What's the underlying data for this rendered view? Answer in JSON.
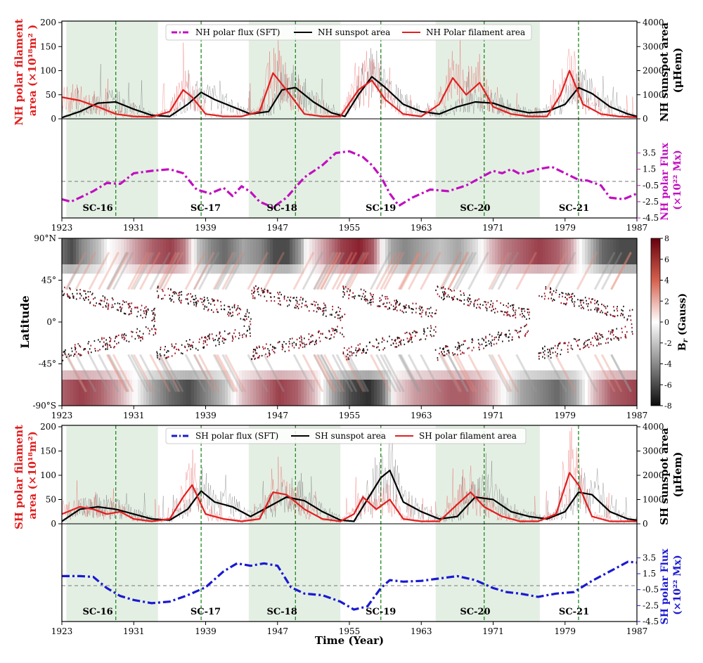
{
  "chart_data": [
    {
      "id": "nh_area",
      "type": "line",
      "title": "",
      "xlabel": "",
      "ylabel_left": "NH polar filament area (×10¹⁸m²)",
      "ylabel_left_lines": [
        "NH polar filament",
        "area (×10¹⁸m² )"
      ],
      "ylabel_right": "NH sunspot area (μHem)",
      "ylabel_right_lines": [
        "NH sunspot area",
        "(μHem)"
      ],
      "xlim": [
        1923,
        1987
      ],
      "ylim_left": [
        0,
        200
      ],
      "ylim_right": [
        0,
        4000
      ],
      "yticks_left": [
        "0",
        "50",
        "100",
        "150",
        "200"
      ],
      "yticks_right": [
        "0",
        "1000",
        "2000",
        "3000",
        "4000"
      ],
      "legend": [
        "NH polar flux (SFT)",
        "NH sunspot area",
        "NH Polar filament area"
      ],
      "series": [
        {
          "name": "NH Polar filament area",
          "axis": "left",
          "x": [
            1923,
            1925,
            1927,
            1929,
            1931,
            1933,
            1935,
            1936.5,
            1937.5,
            1939,
            1941,
            1943,
            1945,
            1946.5,
            1948,
            1950,
            1952,
            1954,
            1956,
            1957.5,
            1959,
            1961,
            1963,
            1965,
            1966.5,
            1968,
            1969.5,
            1971,
            1973,
            1975,
            1977,
            1978.5,
            1979.5,
            1981,
            1983,
            1985,
            1987
          ],
          "values": [
            45,
            38,
            25,
            10,
            5,
            4,
            15,
            60,
            45,
            10,
            5,
            5,
            15,
            95,
            60,
            10,
            5,
            5,
            60,
            80,
            40,
            10,
            5,
            30,
            85,
            50,
            75,
            25,
            10,
            5,
            5,
            50,
            100,
            30,
            10,
            5,
            3
          ]
        },
        {
          "name": "NH sunspot area",
          "axis": "right",
          "x": [
            1923,
            1925,
            1927,
            1929,
            1931,
            1933,
            1935,
            1937,
            1938.5,
            1940,
            1942,
            1944,
            1946,
            1947.5,
            1949,
            1951,
            1953,
            1954.5,
            1956,
            1957.5,
            1959,
            1961,
            1963,
            1965,
            1967,
            1969,
            1971,
            1973,
            1975,
            1977,
            1979,
            1980.5,
            1982,
            1984,
            1986,
            1987
          ],
          "values": [
            50,
            300,
            650,
            700,
            400,
            150,
            100,
            600,
            1100,
            800,
            500,
            200,
            300,
            1200,
            1300,
            700,
            250,
            100,
            1000,
            1750,
            1300,
            600,
            300,
            200,
            500,
            700,
            650,
            400,
            250,
            300,
            600,
            1300,
            1050,
            500,
            200,
            100
          ]
        }
      ]
    },
    {
      "id": "nh_flux",
      "type": "line",
      "ylabel_right": "NH polar Flux (×10²² Mx)",
      "ylabel_right_lines": [
        "NH polar Flux",
        "(×10²² Mx)"
      ],
      "xlim": [
        1923,
        1987
      ],
      "ylim": [
        -4.5,
        4.5
      ],
      "yticks": [
        "3.5",
        "1.5",
        "-0.5",
        "-2.5",
        "-4.5"
      ],
      "xticks": [
        "1923",
        "1931",
        "1939",
        "1947",
        "1955",
        "1963",
        "1971",
        "1979",
        "1987"
      ],
      "series": [
        {
          "name": "NH polar flux (SFT)",
          "x": [
            1923,
            1924,
            1925,
            1926.5,
            1928,
            1929.5,
            1931,
            1933,
            1935,
            1936.5,
            1938,
            1939.5,
            1941,
            1942,
            1943,
            1944,
            1945,
            1946.5,
            1948,
            1950,
            1952,
            1953.5,
            1955,
            1956.5,
            1957.5,
            1958.5,
            1959.5,
            1960.5,
            1962,
            1964,
            1966,
            1968,
            1970,
            1971,
            1972,
            1973,
            1974,
            1976,
            1977.5,
            1979,
            1980.5,
            1981.5,
            1983,
            1984,
            1985.5,
            1987
          ],
          "values": [
            -2.2,
            -2.5,
            -2.0,
            -1.2,
            -0.2,
            -0.3,
            1.0,
            1.3,
            1.5,
            1.0,
            -1.0,
            -1.5,
            -0.8,
            -1.8,
            -0.6,
            -1.3,
            -2.5,
            -3.2,
            -2.0,
            0.5,
            2.0,
            3.5,
            3.7,
            3.0,
            2.0,
            0.6,
            -1.5,
            -3.0,
            -2.0,
            -1.0,
            -1.2,
            -0.5,
            0.7,
            1.3,
            1.0,
            1.5,
            0.9,
            1.5,
            1.8,
            1.0,
            0.2,
            0.1,
            -0.5,
            -2.0,
            -2.2,
            -1.5
          ]
        }
      ],
      "cycle_labels": [
        "SC-16",
        "SC-17",
        "SC-18",
        "SC-19",
        "SC-20",
        "SC-21"
      ]
    },
    {
      "id": "butterfly",
      "type": "heatmap",
      "ylabel": "Latitude",
      "colorbar_label": "B_r (Gauss)",
      "yticks": [
        "90°N",
        "45°",
        "0°",
        "-45°",
        "-90°S"
      ],
      "xticks": [
        "1923",
        "1931",
        "1939",
        "1947",
        "1955",
        "1963",
        "1971",
        "1979",
        "1987"
      ],
      "colorbar_range": [
        -8,
        8
      ],
      "colorbar_ticks": [
        "8",
        "6",
        "4",
        "2",
        "0",
        "-2",
        "-4",
        "-6",
        "-8"
      ],
      "north_polar_field": {
        "x": [
          1923,
          1924,
          1925,
          1927,
          1928,
          1929.5,
          1931,
          1933,
          1935,
          1936.5,
          1937.5,
          1938,
          1939.5,
          1941,
          1943,
          1945,
          1946.5,
          1948,
          1949.5,
          1950,
          1952,
          1954,
          1956,
          1957.5,
          1958.5,
          1959.5,
          1961,
          1963,
          1965,
          1967,
          1969,
          1970.5,
          1972,
          1974,
          1976,
          1978,
          1979.5,
          1980.5,
          1981.5,
          1983,
          1985,
          1987
        ],
        "values": [
          -5,
          -6,
          -4,
          -2,
          0,
          1,
          3,
          5,
          6,
          4,
          0,
          -2,
          -4,
          -5,
          -3,
          -4,
          -6,
          -6,
          -3,
          0,
          3,
          6,
          7,
          5,
          0,
          -3,
          -4,
          -3,
          -2,
          -3,
          -1,
          2,
          4,
          5,
          6,
          5,
          3,
          0,
          -2,
          -5,
          -6,
          -6
        ]
      },
      "south_polar_field": {
        "x": [
          1923,
          1925,
          1927,
          1929,
          1931,
          1933,
          1935,
          1937,
          1939,
          1941,
          1943,
          1945,
          1947,
          1949,
          1951,
          1953,
          1955,
          1957,
          1958.5,
          1960,
          1962,
          1964,
          1966,
          1968,
          1970,
          1972,
          1974,
          1976,
          1978,
          1980,
          1982,
          1984,
          1987
        ],
        "values": [
          5,
          6,
          5,
          3,
          0,
          -3,
          -5,
          -6,
          -4,
          -2,
          2,
          4,
          6,
          5,
          2,
          -3,
          -6,
          -7,
          -5,
          1,
          3,
          4,
          5,
          5,
          3,
          0,
          -3,
          -4,
          -5,
          -3,
          2,
          5,
          6
        ]
      }
    },
    {
      "id": "sh_area",
      "type": "line",
      "ylabel_left": "SH polar filament area (×10¹⁸m²)",
      "ylabel_left_lines": [
        "SH polar filament",
        "area (×10¹⁸m²)"
      ],
      "ylabel_right": "SH sunspot area (μHem)",
      "ylabel_right_lines": [
        "SH sunspot area",
        "(μHem)"
      ],
      "xlim": [
        1923,
        1987
      ],
      "ylim_left": [
        0,
        200
      ],
      "ylim_right": [
        0,
        4000
      ],
      "yticks_left": [
        "0",
        "50",
        "100",
        "150",
        "200"
      ],
      "yticks_right": [
        "0",
        "1000",
        "2000",
        "3000",
        "4000"
      ],
      "legend": [
        "SH polar flux (SFT)",
        "SH sunspot area",
        "SH polar filament area"
      ],
      "series": [
        {
          "name": "SH polar filament area",
          "axis": "left",
          "x": [
            1923,
            1925,
            1926.5,
            1928,
            1929.5,
            1931,
            1933,
            1935,
            1936.5,
            1937.5,
            1939,
            1941,
            1943,
            1945,
            1946.5,
            1948,
            1950,
            1952,
            1954,
            1955.5,
            1956.5,
            1958,
            1959.5,
            1961,
            1963,
            1965,
            1967,
            1968.5,
            1970,
            1972,
            1974,
            1976,
            1978,
            1979.5,
            1980.5,
            1982,
            1984,
            1987
          ],
          "values": [
            20,
            35,
            30,
            20,
            25,
            10,
            5,
            10,
            55,
            80,
            20,
            10,
            5,
            10,
            65,
            60,
            30,
            10,
            5,
            20,
            55,
            30,
            50,
            10,
            5,
            5,
            40,
            65,
            35,
            15,
            5,
            5,
            20,
            105,
            80,
            15,
            5,
            5
          ]
        },
        {
          "name": "SH sunspot area",
          "axis": "right",
          "x": [
            1923,
            1925,
            1927,
            1929,
            1931,
            1933,
            1935,
            1937,
            1938.5,
            1940,
            1942,
            1944,
            1946,
            1948,
            1950,
            1952,
            1954,
            1955.5,
            1957,
            1958.5,
            1959.5,
            1961,
            1963,
            1965,
            1967,
            1969,
            1971,
            1973,
            1975,
            1977,
            1979,
            1980.5,
            1982,
            1984,
            1986,
            1987
          ],
          "values": [
            100,
            600,
            700,
            600,
            400,
            200,
            150,
            600,
            1350,
            900,
            700,
            300,
            700,
            1100,
            950,
            500,
            150,
            100,
            1000,
            1900,
            2200,
            900,
            500,
            200,
            300,
            1100,
            1000,
            500,
            300,
            200,
            500,
            1300,
            1200,
            500,
            200,
            150
          ]
        }
      ]
    },
    {
      "id": "sh_flux",
      "type": "line",
      "xlabel": "Time (Year)",
      "ylabel_right": "SH polar Flux (×10²² Mx)",
      "ylabel_right_lines": [
        "SH polar Flux",
        "(×10²² Mx)"
      ],
      "xlim": [
        1923,
        1987
      ],
      "ylim": [
        -4.5,
        4.5
      ],
      "yticks": [
        "3.5",
        "1.5",
        "-0.5",
        "-2.5",
        "-4.5"
      ],
      "xticks": [
        "1923",
        "1931",
        "1939",
        "1947",
        "1955",
        "1963",
        "1971",
        "1979",
        "1987"
      ],
      "series": [
        {
          "name": "SH polar flux (SFT)",
          "x": [
            1923,
            1925,
            1926.5,
            1928,
            1929.5,
            1931,
            1933,
            1935,
            1937,
            1939,
            1941,
            1942.5,
            1944,
            1945.5,
            1947,
            1948.5,
            1950,
            1952,
            1954,
            1955.5,
            1957,
            1958.5,
            1959.5,
            1961,
            1963,
            1965,
            1967,
            1969,
            1971,
            1972.5,
            1974,
            1976,
            1978,
            1980,
            1982,
            1984,
            1986,
            1987
          ],
          "values": [
            1.2,
            1.2,
            1.1,
            -0.3,
            -1.3,
            -1.8,
            -2.2,
            -2.0,
            -1.2,
            -0.2,
            1.8,
            2.8,
            2.5,
            2.8,
            2.5,
            -0.2,
            -1.0,
            -1.2,
            -2.0,
            -3.0,
            -2.6,
            -0.3,
            0.7,
            0.5,
            0.6,
            0.9,
            1.2,
            0.7,
            -0.3,
            -0.8,
            -1.0,
            -1.4,
            -1.0,
            -0.8,
            0.6,
            1.8,
            3.0,
            2.9
          ]
        }
      ],
      "cycle_labels": [
        "SC-16",
        "SC-17",
        "SC-18",
        "SC-19",
        "SC-20",
        "SC-21"
      ]
    }
  ],
  "cycle_minima_years": [
    1929,
    1938.5,
    1949,
    1958.5,
    1970,
    1980.5
  ],
  "shaded_spans": [
    [
      1923.5,
      1933.7
    ],
    [
      1943.8,
      1954.0
    ],
    [
      1964.6,
      1976.2
    ]
  ],
  "colors": {
    "filament": "#e02020",
    "sunspot": "#000000",
    "nh_flux": "#c010c0",
    "sh_flux": "#1a1ad0",
    "shade": "#e4efe4",
    "cycle_line": "#1e8a1e",
    "zero_line": "#777777"
  }
}
